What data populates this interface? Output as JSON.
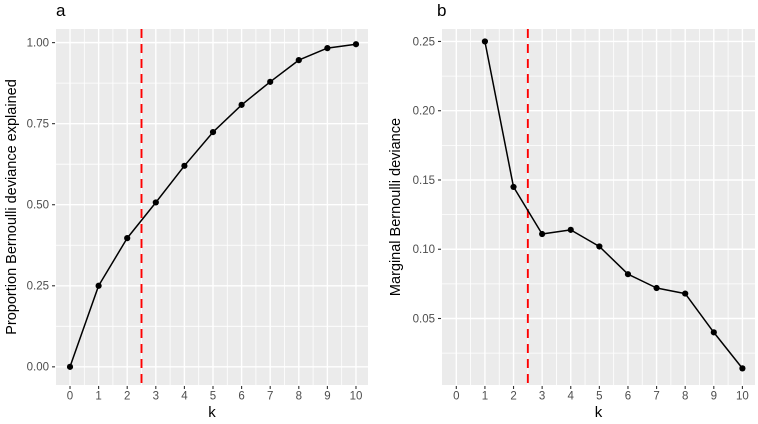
{
  "figure": {
    "background": "#FFFFFF",
    "panel_background": "#EBEBEB",
    "gridline_color": "#FFFFFF",
    "series_color": "#000000",
    "tick_mark_color": "#333333",
    "tick_label_color": "#4D4D4D",
    "axis_title_color": "#000000",
    "vline_color": "#FF0000"
  },
  "chart_data": [
    {
      "type": "line",
      "panel_label": "a",
      "xlabel": "k",
      "ylabel": "Proportion Bernoulli deviance explained",
      "x": [
        0,
        1,
        2,
        3,
        4,
        5,
        6,
        7,
        8,
        9,
        10
      ],
      "y": [
        0.0,
        0.25,
        0.397,
        0.507,
        0.62,
        0.724,
        0.808,
        0.879,
        0.946,
        0.983,
        0.995
      ],
      "vline": {
        "x": 2.5,
        "color": "#FF0000",
        "style": "dashed"
      },
      "xlim": [
        -0.49,
        10.42
      ],
      "ylim": [
        -0.056,
        1.042
      ],
      "x_ticks": [
        0,
        1,
        2,
        3,
        4,
        5,
        6,
        7,
        8,
        9,
        10
      ],
      "x_tick_labels": [
        "0",
        "1",
        "2",
        "3",
        "4",
        "5",
        "6",
        "7",
        "8",
        "9",
        "10"
      ],
      "y_ticks": [
        0.0,
        0.25,
        0.5,
        0.75,
        1.0
      ],
      "y_tick_labels": [
        "0.00",
        "0.25",
        "0.50",
        "0.75",
        "1.00"
      ],
      "x_minor": [
        0.5,
        1.5,
        2.5,
        3.5,
        4.5,
        5.5,
        6.5,
        7.5,
        8.5,
        9.5
      ],
      "y_minor": [
        0.125,
        0.375,
        0.625,
        0.875
      ],
      "grid": true,
      "legend": "none"
    },
    {
      "type": "line",
      "panel_label": "b",
      "xlabel": "k",
      "ylabel": "Marginal Bernoulli deviance",
      "x": [
        1,
        2,
        3,
        4,
        5,
        6,
        7,
        8,
        9,
        10
      ],
      "y": [
        0.25,
        0.145,
        0.111,
        0.114,
        0.102,
        0.082,
        0.072,
        0.068,
        0.04,
        0.014
      ],
      "vline": {
        "x": 2.5,
        "color": "#FF0000",
        "style": "dashed"
      },
      "xlim": [
        -0.5,
        10.44
      ],
      "ylim": [
        0.002,
        0.259
      ],
      "x_ticks": [
        0,
        1,
        2,
        3,
        4,
        5,
        6,
        7,
        8,
        9,
        10
      ],
      "x_tick_labels": [
        "0",
        "1",
        "2",
        "3",
        "4",
        "5",
        "6",
        "7",
        "8",
        "9",
        "10"
      ],
      "y_ticks": [
        0.05,
        0.1,
        0.15,
        0.2,
        0.25
      ],
      "y_tick_labels": [
        "0.05",
        "0.10",
        "0.15",
        "0.20",
        "0.25"
      ],
      "x_minor": [
        0.5,
        1.5,
        2.5,
        3.5,
        4.5,
        5.5,
        6.5,
        7.5,
        8.5,
        9.5
      ],
      "y_minor": [
        0.025,
        0.075,
        0.125,
        0.175,
        0.225
      ],
      "grid": true,
      "legend": "none"
    }
  ]
}
